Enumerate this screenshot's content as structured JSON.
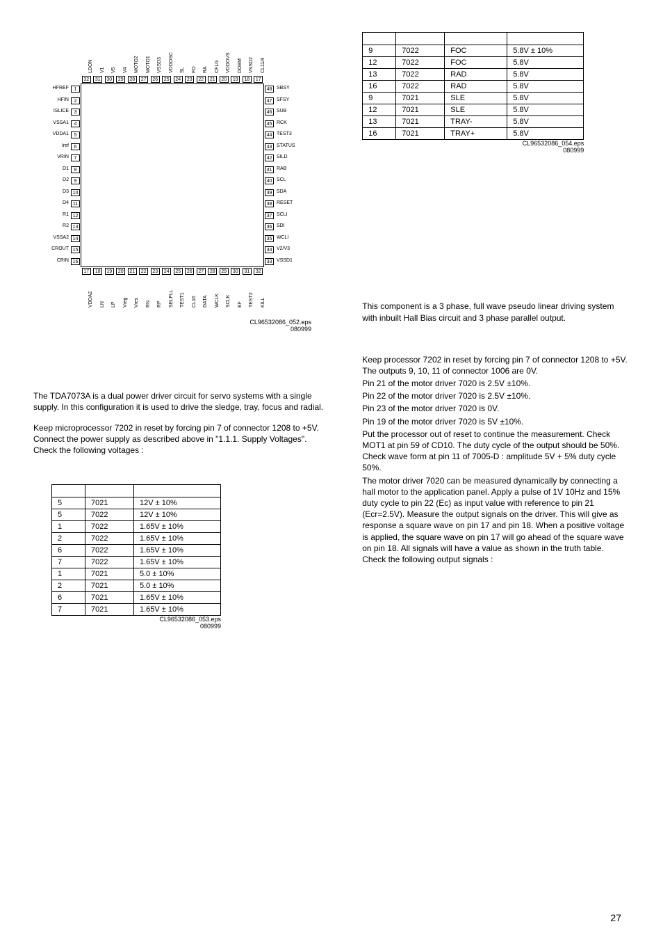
{
  "chip": {
    "top_pins": [
      {
        "n": 32,
        "l": "LDON"
      },
      {
        "n": 31,
        "l": "V1"
      },
      {
        "n": 30,
        "l": "V5"
      },
      {
        "n": 29,
        "l": "V4"
      },
      {
        "n": 28,
        "l": "MOTO2"
      },
      {
        "n": 27,
        "l": "MOTO1"
      },
      {
        "n": 26,
        "l": "VSSD3"
      },
      {
        "n": 25,
        "l": "VDDOSC"
      },
      {
        "n": 24,
        "l": "SL"
      },
      {
        "n": 23,
        "l": "FO"
      },
      {
        "n": 22,
        "l": "RA"
      },
      {
        "n": 21,
        "l": "CFLG"
      },
      {
        "n": 20,
        "l": "VDDOVS"
      },
      {
        "n": 19,
        "l": "DOBM"
      },
      {
        "n": 18,
        "l": "VSSD2"
      },
      {
        "n": 17,
        "l": "CL11/4"
      }
    ],
    "left_pins": [
      {
        "n": 1,
        "l": "HFREF"
      },
      {
        "n": 2,
        "l": "HFIN"
      },
      {
        "n": 3,
        "l": "ISLICE"
      },
      {
        "n": 4,
        "l": "VSSA1"
      },
      {
        "n": 5,
        "l": "VDDA1"
      },
      {
        "n": 6,
        "l": "Iref"
      },
      {
        "n": 7,
        "l": "VRIN"
      },
      {
        "n": 8,
        "l": "D1"
      },
      {
        "n": 9,
        "l": "D2"
      },
      {
        "n": 10,
        "l": "D3"
      },
      {
        "n": 11,
        "l": "D4"
      },
      {
        "n": 12,
        "l": "R1"
      },
      {
        "n": 13,
        "l": "R2"
      },
      {
        "n": 14,
        "l": "VSSA2"
      },
      {
        "n": 15,
        "l": "CROUT"
      },
      {
        "n": 16,
        "l": "CRIN"
      }
    ],
    "right_pins": [
      {
        "n": 48,
        "l": "SBSY"
      },
      {
        "n": 47,
        "l": "SFSY"
      },
      {
        "n": 46,
        "l": "SUB"
      },
      {
        "n": 45,
        "l": "RCK"
      },
      {
        "n": 44,
        "l": "TEST3"
      },
      {
        "n": 43,
        "l": "STATUS"
      },
      {
        "n": 42,
        "l": "SILD"
      },
      {
        "n": 41,
        "l": "RAB"
      },
      {
        "n": 40,
        "l": "SCL"
      },
      {
        "n": 39,
        "l": "SDA"
      },
      {
        "n": 38,
        "l": "RESET"
      },
      {
        "n": 37,
        "l": "SCLI"
      },
      {
        "n": 36,
        "l": "SDI"
      },
      {
        "n": 35,
        "l": "WCLI"
      },
      {
        "n": 34,
        "l": "V2/V3"
      },
      {
        "n": 33,
        "l": "VSSD1"
      }
    ],
    "bottom_pins": [
      {
        "n": 17,
        "l": "VDDA2"
      },
      {
        "n": 18,
        "l": "LN"
      },
      {
        "n": 19,
        "l": "LP"
      },
      {
        "n": 20,
        "l": "Vreg"
      },
      {
        "n": 21,
        "l": "Vres"
      },
      {
        "n": 22,
        "l": "RN"
      },
      {
        "n": 23,
        "l": "RP"
      },
      {
        "n": 24,
        "l": "SELPLL"
      },
      {
        "n": 25,
        "l": "TEST1"
      },
      {
        "n": 26,
        "l": "CL16"
      },
      {
        "n": 27,
        "l": "DATA"
      },
      {
        "n": 28,
        "l": "WCLK"
      },
      {
        "n": 29,
        "l": "SCLK"
      },
      {
        "n": 30,
        "l": "EF"
      },
      {
        "n": 31,
        "l": "TEST2"
      },
      {
        "n": 32,
        "l": "KILL"
      }
    ],
    "eps1": "CL96532086_052.eps",
    "eps1_date": "080999"
  },
  "left_text1": "The TDA7073A is a dual power driver circuit for servo systems with a single supply. In this configuration it is used to drive the sledge, tray, focus and radial.",
  "left_text2": "Keep microprocessor 7202 in reset by forcing pin 7 of connector 1208 to +5V. Connect the power supply as described above in \"1.1.1. Supply Voltages\". Check the following voltages :",
  "table1": {
    "cols": [
      "",
      "",
      ""
    ],
    "rows": [
      [
        "5",
        "7021",
        "12V ± 10%"
      ],
      [
        "5",
        "7022",
        "12V ± 10%"
      ],
      [
        "1",
        "7022",
        "1.65V ± 10%"
      ],
      [
        "2",
        "7022",
        "1.65V ± 10%"
      ],
      [
        "6",
        "7022",
        "1.65V ± 10%"
      ],
      [
        "7",
        "7022",
        "1.65V ± 10%"
      ],
      [
        "1",
        "7021",
        "5.0 ± 10%"
      ],
      [
        "2",
        "7021",
        "5.0 ± 10%"
      ],
      [
        "6",
        "7021",
        "1.65V ± 10%"
      ],
      [
        "7",
        "7021",
        "1.65V ± 10%"
      ]
    ],
    "eps": "CL96532086_053.eps",
    "eps_date": "080999",
    "col_widths": [
      "48px",
      "70px",
      "125px"
    ]
  },
  "table2": {
    "cols": [
      "",
      "",
      "",
      ""
    ],
    "rows": [
      [
        "9",
        "7022",
        "FOC",
        "5.8V ± 10%"
      ],
      [
        "12",
        "7022",
        "FOC",
        "5.8V"
      ],
      [
        "13",
        "7022",
        "RAD",
        "5.8V"
      ],
      [
        "16",
        "7022",
        "RAD",
        "5.8V"
      ],
      [
        "9",
        "7021",
        "SLE",
        "5.8V"
      ],
      [
        "12",
        "7021",
        "SLE",
        "5.8V"
      ],
      [
        "13",
        "7021",
        "TRAY-",
        "5.8V"
      ],
      [
        "16",
        "7021",
        "TRAY+",
        "5.8V"
      ]
    ],
    "eps": "CL96532086_054.eps",
    "eps_date": "080999",
    "col_widths": [
      "48px",
      "70px",
      "90px",
      "110px"
    ]
  },
  "right_text1": "This component is a 3 phase, full wave pseudo linear driving system with inbuilt Hall Bias circuit and 3 phase parallel output.",
  "right_long": [
    "Keep processor 7202 in reset by forcing  pin 7 of connector 1208 to +5V. The outputs 9, 10, 11 of connector 1006 are 0V.",
    "Pin 21 of the motor driver 7020 is 2.5V ±10%.",
    "Pin 22 of the motor driver 7020 is 2.5V ±10%.",
    "Pin 23 of the motor driver 7020 is 0V.",
    "Pin 19 of the motor driver 7020 is 5V ±10%.",
    "Put the processor out of reset to continue the measurement. Check MOT1 at pin 59 of CD10.  The duty cycle of the output should be 50%. Check wave form at pin 11 of 7005-D : amplitude 5V + 5% duty cycle 50%.",
    "The motor driver 7020 can be measured dynamically by connecting a hall motor to the application panel. Apply a pulse of 1V 10Hz and 15% duty cycle to pin 22 (Ec) as input value with reference to pin 21 (Ecr=2.5V). Measure the output signals on the driver. This will give as response a square wave on pin 17 and pin 18.  When a positive voltage is applied, the square wave on pin 17 will go ahead of the square wave on pin 18.  All signals will have a value as shown in the truth table. Check the following output signals :"
  ],
  "page_number": "27"
}
